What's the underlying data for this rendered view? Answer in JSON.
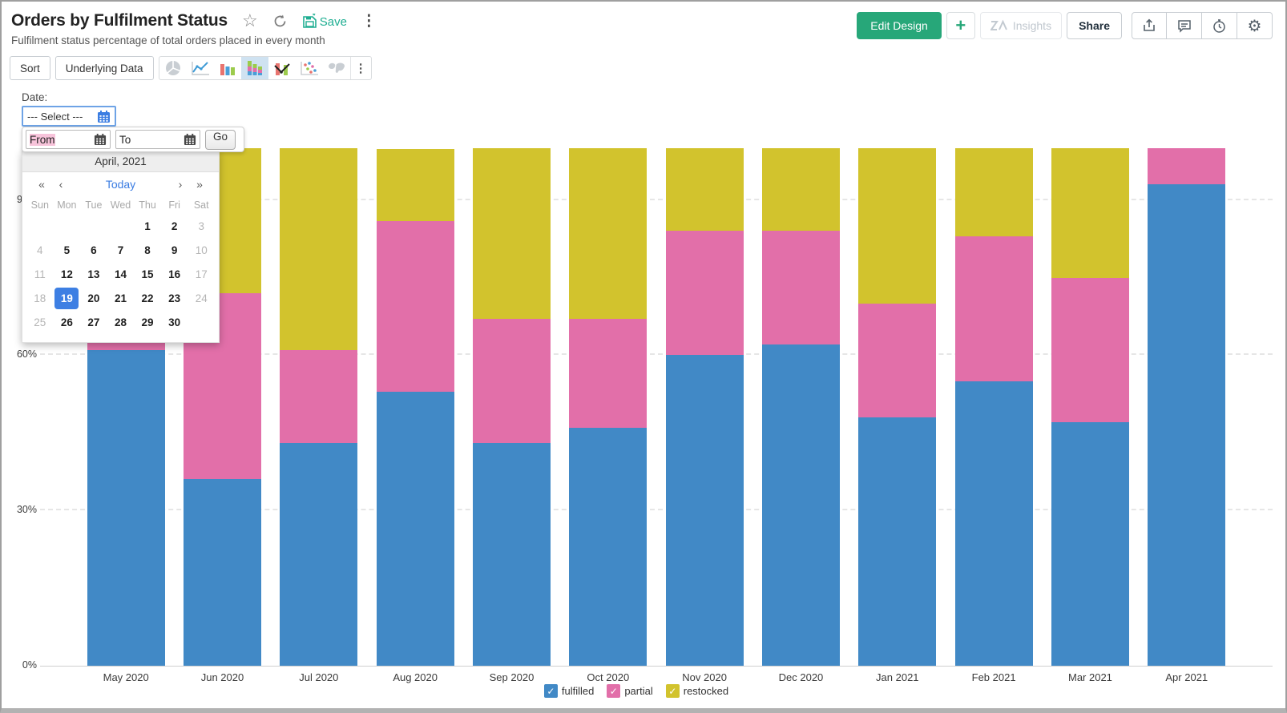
{
  "header": {
    "title": "Orders by Fulfilment Status",
    "subtitle": "Fulfilment status percentage of total orders placed in every month",
    "save_label": "Save"
  },
  "actions": {
    "edit_design": "Edit Design",
    "add": "+",
    "insights": "Insights",
    "share": "Share"
  },
  "toolbar": {
    "sort": "Sort",
    "underlying_data": "Underlying Data",
    "chart_types": [
      "pie",
      "line",
      "bar",
      "stacked-bar",
      "combo",
      "scatter",
      "map"
    ],
    "active_chart_type": "stacked-bar"
  },
  "filter": {
    "label": "Date:",
    "select_value": "--- Select ---"
  },
  "datepicker": {
    "from_placeholder": "From",
    "to_placeholder": "To",
    "go": "Go",
    "month_title": "April, 2021",
    "nav": {
      "prev_year": "«",
      "prev_month": "‹",
      "today": "Today",
      "next_month": "›",
      "next_year": "»"
    },
    "day_names": [
      "Sun",
      "Mon",
      "Tue",
      "Wed",
      "Thu",
      "Fri",
      "Sat"
    ],
    "leading_blanks": 4,
    "days_in_month": 30,
    "muted_days": [
      3,
      4,
      10,
      11,
      17,
      18,
      24,
      25
    ],
    "selected_day": 19
  },
  "chart_data": {
    "type": "bar",
    "subtype": "stacked-100-percent",
    "title": "Orders by Fulfilment Status",
    "categories": [
      "May 2020",
      "Jun 2020",
      "Jul 2020",
      "Aug 2020",
      "Sep 2020",
      "Oct 2020",
      "Nov 2020",
      "Dec 2020",
      "Jan 2021",
      "Feb 2021",
      "Mar 2021",
      "Apr 2021"
    ],
    "series": [
      {
        "name": "fulfilled",
        "color": "#4189c6",
        "values": [
          61,
          36,
          43,
          53,
          43,
          46,
          60,
          62,
          48,
          55,
          47,
          93
        ]
      },
      {
        "name": "partial",
        "color": "#e26fa9",
        "values": [
          24,
          36,
          18,
          33,
          24,
          21,
          24,
          22,
          22,
          28,
          28,
          7
        ]
      },
      {
        "name": "restocked",
        "color": "#d2c32d",
        "values": [
          15,
          28,
          39,
          14,
          33,
          33,
          16,
          16,
          30,
          17,
          25,
          0
        ]
      }
    ],
    "xlabel": "",
    "ylabel": "",
    "ylim": [
      0,
      100
    ],
    "yticks": [
      0,
      30,
      60,
      90
    ],
    "ytick_suffix": "%",
    "grid": "dashed-horizontal",
    "legend_position": "bottom",
    "legend_checkmark": "✓"
  },
  "colors": {
    "accent_teal": "#27a779",
    "accent_blue": "#3d7fe3",
    "bar_blue": "#4189c6",
    "bar_pink": "#e26fa9",
    "bar_yellow": "#d2c32d"
  }
}
